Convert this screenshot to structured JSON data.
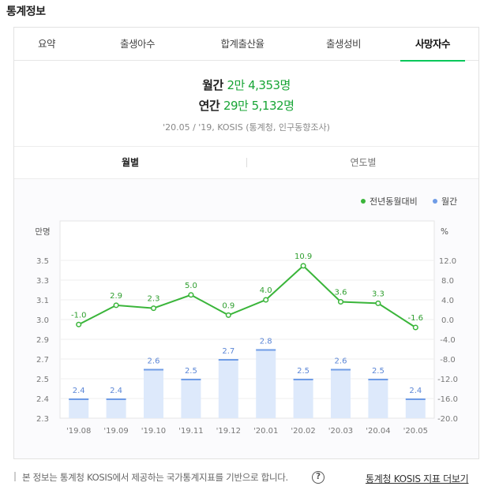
{
  "heading": "통계정보",
  "tabs": [
    {
      "label": "요약"
    },
    {
      "label": "출생아수"
    },
    {
      "label": "합계출산율"
    },
    {
      "label": "출생성비"
    },
    {
      "label": "사망자수"
    }
  ],
  "summary": {
    "monthly_label": "월간",
    "monthly_value": "2만 4,353명",
    "yearly_label": "연간",
    "yearly_value": "29만 5,132명",
    "source": "'20.05 / '19, KOSIS (통계청, 인구동향조사)"
  },
  "subtabs": [
    {
      "label": "월별"
    },
    {
      "label": "연도별"
    }
  ],
  "colors": {
    "line": "#3ab53a",
    "bar_fill": "#dde9fb",
    "bar_top": "#6f9ce6"
  },
  "chart_data": {
    "type": "bar",
    "categories": [
      "'19.08",
      "'19.09",
      "'19.10",
      "'19.11",
      "'19.12",
      "'20.01",
      "'20.02",
      "'20.03",
      "'20.04",
      "'20.05"
    ],
    "series": [
      {
        "name": "월간",
        "type": "bar",
        "axis": "left",
        "values": [
          2.4,
          2.4,
          2.6,
          2.5,
          2.7,
          2.8,
          2.5,
          2.6,
          2.5,
          2.4
        ]
      },
      {
        "name": "전년동월대비",
        "type": "line",
        "axis": "right",
        "values": [
          -1.0,
          2.9,
          2.3,
          5.0,
          0.9,
          4.0,
          10.9,
          3.6,
          3.3,
          -1.6
        ]
      }
    ],
    "left_axis": {
      "unit": "만명",
      "ticks": [
        "2.3",
        "2.4",
        "2.5",
        "2.7",
        "2.9",
        "3.0",
        "3.1",
        "3.3",
        "3.5"
      ]
    },
    "right_axis": {
      "unit": "%",
      "ticks": [
        "-20.0",
        "-16.0",
        "-12.0",
        "-8.0",
        "-4.0",
        "0.0",
        "4.0",
        "8.0",
        "12.0"
      ]
    },
    "legend": [
      {
        "name": "전년동월대비"
      },
      {
        "name": "월간"
      }
    ],
    "legend_position": "top-right",
    "grid": true
  },
  "footer": {
    "note": "본 정보는 통계청 KOSIS에서 제공하는 국가통계지표를 기반으로 합니다.",
    "help": "?",
    "link": "통계청 KOSIS 지표 더보기"
  }
}
